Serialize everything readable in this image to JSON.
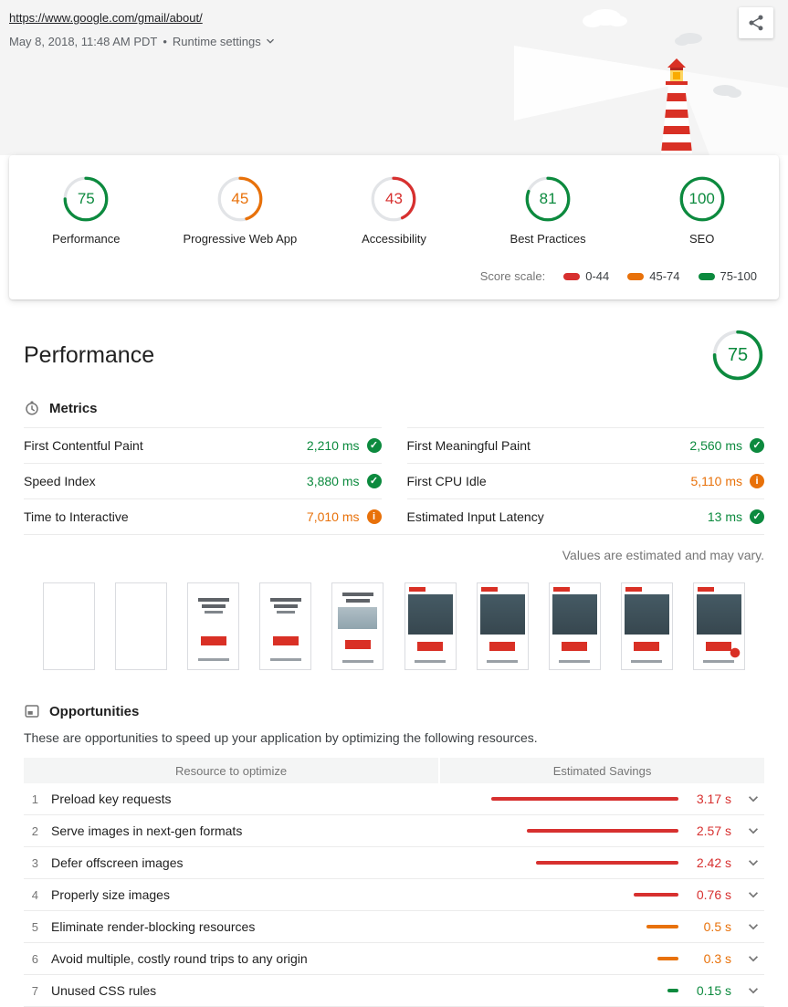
{
  "palette": {
    "pass": "#0c8a3e",
    "average": "#e8710a",
    "fail": "#d7302f"
  },
  "header": {
    "url": "https://www.google.com/gmail/about/",
    "timestamp": "May 8, 2018, 11:48 AM PDT",
    "separator": "•",
    "runtime_settings_label": "Runtime settings"
  },
  "scores": {
    "items": [
      {
        "label": "Performance",
        "score": "75",
        "status": "pass"
      },
      {
        "label": "Progressive Web App",
        "score": "45",
        "status": "average"
      },
      {
        "label": "Accessibility",
        "score": "43",
        "status": "fail"
      },
      {
        "label": "Best Practices",
        "score": "81",
        "status": "pass"
      },
      {
        "label": "SEO",
        "score": "100",
        "status": "pass"
      }
    ],
    "scale_label": "Score scale:",
    "scale": [
      {
        "label": "0-44",
        "status": "fail"
      },
      {
        "label": "45-74",
        "status": "average"
      },
      {
        "label": "75-100",
        "status": "pass"
      }
    ]
  },
  "performance": {
    "title": "Performance",
    "gauge": {
      "score": "75",
      "status": "pass"
    },
    "metrics_title": "Metrics",
    "metrics": [
      {
        "label": "First Contentful Paint",
        "value": "2,210 ms",
        "status": "pass"
      },
      {
        "label": "First Meaningful Paint",
        "value": "2,560 ms",
        "status": "pass"
      },
      {
        "label": "Speed Index",
        "value": "3,880 ms",
        "status": "pass"
      },
      {
        "label": "First CPU Idle",
        "value": "5,110 ms",
        "status": "average"
      },
      {
        "label": "Time to Interactive",
        "value": "7,010 ms",
        "status": "average"
      },
      {
        "label": "Estimated Input Latency",
        "value": "13 ms",
        "status": "pass"
      }
    ],
    "disclaimer": "Values are estimated and may vary.",
    "filmstrip_frames": [
      "blank",
      "blank",
      "text",
      "text",
      "text-image",
      "full",
      "full",
      "full",
      "full",
      "full-fab"
    ]
  },
  "opportunities": {
    "title": "Opportunities",
    "description": "These are opportunities to speed up your application by optimizing the following resources.",
    "columns": {
      "resource": "Resource to optimize",
      "savings": "Estimated Savings"
    },
    "items": [
      {
        "num": "1",
        "label": "Preload key requests",
        "savings": "3.17 s",
        "status": "fail",
        "bar_pct": 100
      },
      {
        "num": "2",
        "label": "Serve images in next-gen formats",
        "savings": "2.57 s",
        "status": "fail",
        "bar_pct": 81
      },
      {
        "num": "3",
        "label": "Defer offscreen images",
        "savings": "2.42 s",
        "status": "fail",
        "bar_pct": 76
      },
      {
        "num": "4",
        "label": "Properly size images",
        "savings": "0.76 s",
        "status": "fail",
        "bar_pct": 24
      },
      {
        "num": "5",
        "label": "Eliminate render-blocking resources",
        "savings": "0.5 s",
        "status": "average",
        "bar_pct": 17
      },
      {
        "num": "6",
        "label": "Avoid multiple, costly round trips to any origin",
        "savings": "0.3 s",
        "status": "average",
        "bar_pct": 11
      },
      {
        "num": "7",
        "label": "Unused CSS rules",
        "savings": "0.15 s",
        "status": "pass",
        "bar_pct": 6
      }
    ]
  }
}
